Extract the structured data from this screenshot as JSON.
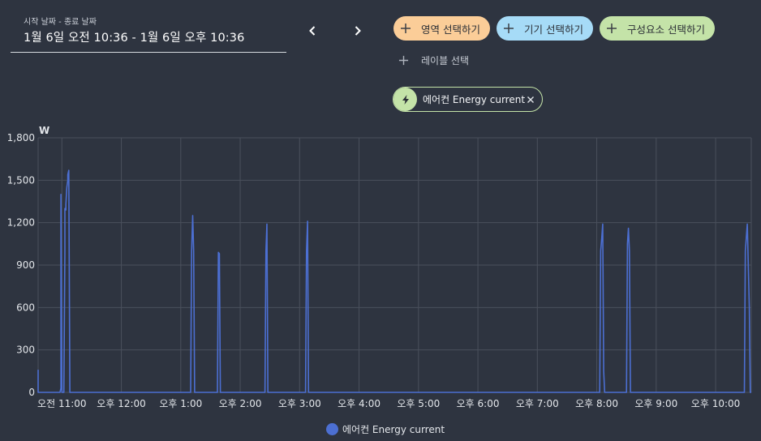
{
  "date_picker": {
    "label": "시작 날짜 - 종료 날짜",
    "value": "1월 6일 오전 10:36 - 1월 6일 오후 10:36"
  },
  "nav": {
    "prev": "previous",
    "next": "next"
  },
  "targets": {
    "area": "영역 선택하기",
    "device": "기기 선택하기",
    "entity": "구성요소 선택하기",
    "label": "레이블 선택"
  },
  "selected_entity": {
    "name": "에어컨 Energy current",
    "icon": "flash-icon"
  },
  "legend": {
    "series_name": "에어컨 Energy current"
  },
  "colors": {
    "background": "#2e3440",
    "area_chip": "#fbcd98",
    "device_chip": "#a6dbf7",
    "entity_chip": "#c4e3a8",
    "series": "#4c6fd2",
    "grid": "#4a505c"
  },
  "chart_data": {
    "type": "line",
    "ylabel": "W",
    "ylim": [
      0,
      1800
    ],
    "y_ticks": [
      "0",
      "300",
      "600",
      "900",
      "1,200",
      "1,500",
      "1,800"
    ],
    "y_tick_values": [
      0,
      300,
      600,
      900,
      1200,
      1500,
      1800
    ],
    "x_range": [
      "10:36",
      "22:36"
    ],
    "x_tick_labels": [
      "오전 11:00",
      "오후 12:00",
      "오후 1:00",
      "오후 2:00",
      "오후 3:00",
      "오후 4:00",
      "오후 5:00",
      "오후 6:00",
      "오후 7:00",
      "오후 8:00",
      "오후 9:00",
      "오후 10:00"
    ],
    "x_tick_times": [
      "11:00",
      "12:00",
      "13:00",
      "14:00",
      "15:00",
      "16:00",
      "17:00",
      "18:00",
      "19:00",
      "20:00",
      "21:00",
      "22:00"
    ],
    "grid": true,
    "legend_position": "bottom-center",
    "series": [
      {
        "name": "에어컨 Energy current",
        "points": [
          [
            "10:36",
            160
          ],
          [
            "10:36",
            0
          ],
          [
            "10:58",
            0
          ],
          [
            "10:59",
            30
          ],
          [
            "10:59",
            1400
          ],
          [
            "11:00",
            30
          ],
          [
            "11:00",
            0
          ],
          [
            "11:02",
            0
          ],
          [
            "11:03",
            1000
          ],
          [
            "11:03",
            1300
          ],
          [
            "11:04",
            1290
          ],
          [
            "11:04",
            1330
          ],
          [
            "11:05",
            1450
          ],
          [
            "11:06",
            1500
          ],
          [
            "11:06",
            1540
          ],
          [
            "11:07",
            1570
          ],
          [
            "11:07",
            1560
          ],
          [
            "11:08",
            0
          ],
          [
            "13:10",
            0
          ],
          [
            "13:11",
            1000
          ],
          [
            "13:12",
            1250
          ],
          [
            "13:13",
            1000
          ],
          [
            "13:14",
            0
          ],
          [
            "13:37",
            0
          ],
          [
            "13:38",
            990
          ],
          [
            "13:39",
            980
          ],
          [
            "13:40",
            0
          ],
          [
            "14:25",
            0
          ],
          [
            "14:26",
            1000
          ],
          [
            "14:27",
            1190
          ],
          [
            "14:28",
            0
          ],
          [
            "15:06",
            0
          ],
          [
            "15:07",
            1000
          ],
          [
            "15:08",
            1210
          ],
          [
            "15:09",
            0
          ],
          [
            "20:03",
            0
          ],
          [
            "20:04",
            1000
          ],
          [
            "20:05",
            1090
          ],
          [
            "20:06",
            1190
          ],
          [
            "20:07",
            150
          ],
          [
            "20:08",
            0
          ],
          [
            "20:30",
            0
          ],
          [
            "20:31",
            1050
          ],
          [
            "20:32",
            1160
          ],
          [
            "20:33",
            1000
          ],
          [
            "20:34",
            0
          ],
          [
            "22:29",
            0
          ],
          [
            "22:30",
            1000
          ],
          [
            "22:32",
            1190
          ],
          [
            "22:34",
            600
          ],
          [
            "22:35",
            0
          ],
          [
            "22:36",
            0
          ]
        ]
      }
    ]
  }
}
